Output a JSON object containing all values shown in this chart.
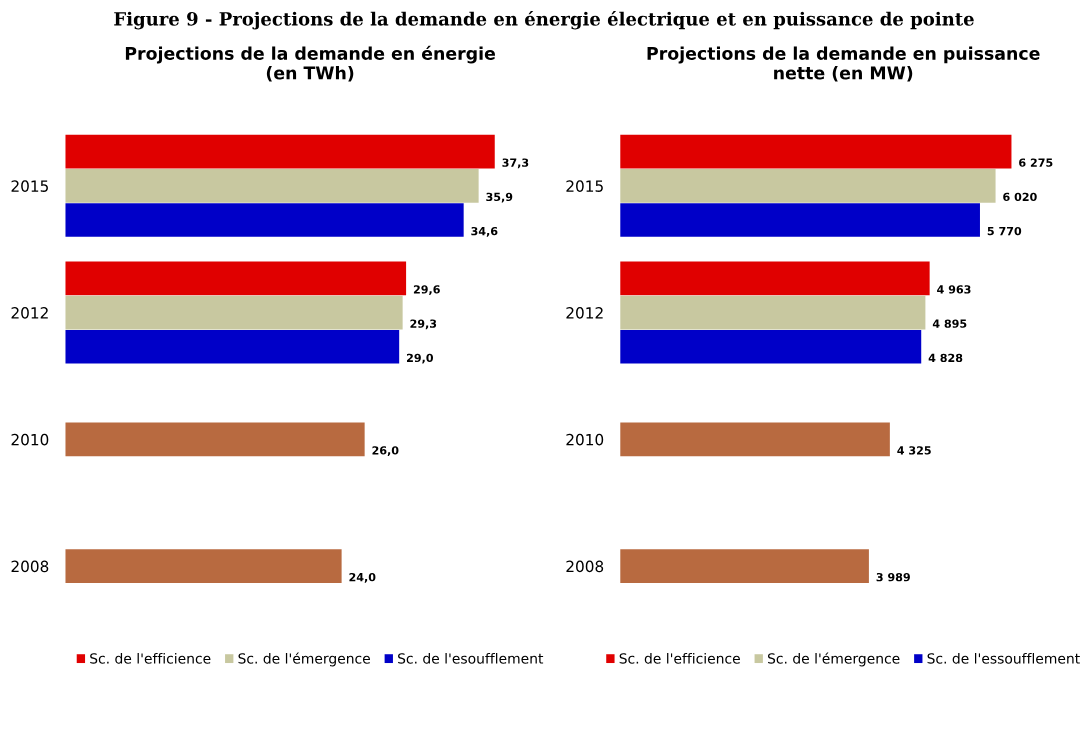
{
  "chart_data": [
    {
      "type": "bar",
      "orientation": "horizontal",
      "title": "Projections de la demande en énergie\n(en TWh)",
      "annotations": [
        "Figure 9 - Projections de la demande en énergie électrique et en puissance de pointe"
      ],
      "categories": [
        "2015",
        "2012",
        "2010",
        "2008"
      ],
      "tick_labels": "y",
      "grid": false,
      "legend": "bottom",
      "series": [
        {
          "name": "Sc. de l'efficience",
          "color": "#e00000",
          "values": [
            37.3,
            29.6,
            null,
            null
          ],
          "value_labels": [
            "37,3",
            "29,6",
            null,
            null
          ]
        },
        {
          "name": "Sc. de l'émergence",
          "color": "#c8c8a0",
          "values": [
            35.9,
            29.3,
            null,
            null
          ],
          "value_labels": [
            "35,9",
            "29,3",
            null,
            null
          ]
        },
        {
          "name": "Sc. de l'esoufflement",
          "color": "#0000c8",
          "values": [
            34.6,
            29.0,
            null,
            null
          ],
          "value_labels": [
            "34,6",
            "29,0",
            null,
            null
          ]
        },
        {
          "color": "#b86a40",
          "values": [
            null,
            null,
            26.0,
            24.0
          ],
          "value_labels": [
            null,
            null,
            "26,0",
            "24,0"
          ]
        }
      ]
    },
    {
      "type": "bar",
      "orientation": "horizontal",
      "title": "Projections de la demande en puissance\nnette (en MW)",
      "categories": [
        "2015",
        "2012",
        "2010",
        "2008"
      ],
      "tick_labels": "y",
      "grid": false,
      "legend": "bottom",
      "series": [
        {
          "name": "Sc. de l'efficience",
          "color": "#e00000",
          "values": [
            6275,
            4963,
            null,
            null
          ],
          "value_labels": [
            "6 275",
            "4 963",
            null,
            null
          ]
        },
        {
          "name": "Sc. de l'émergence",
          "color": "#c8c8a0",
          "values": [
            6020,
            4895,
            null,
            null
          ],
          "value_labels": [
            "6 020",
            "4 895",
            null,
            null
          ]
        },
        {
          "name": "Sc. de l'essoufflement",
          "color": "#0000c8",
          "values": [
            5770,
            4828,
            null,
            null
          ],
          "value_labels": [
            "5 770",
            "4 828",
            null,
            null
          ]
        },
        {
          "color": "#b86a40",
          "values": [
            null,
            null,
            4325,
            3989
          ],
          "value_labels": [
            null,
            null,
            "4 325",
            "3 989"
          ]
        }
      ]
    }
  ]
}
